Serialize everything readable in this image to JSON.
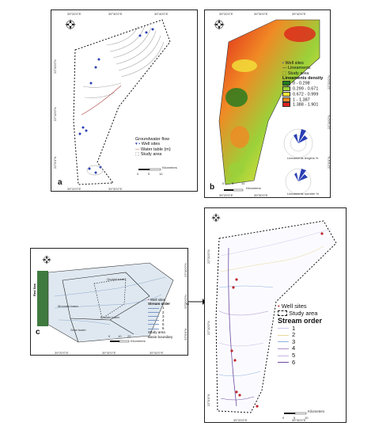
{
  "panel_a": {
    "label": "a",
    "ticks_x": [
      "39°20'0\"E",
      "39°30'0\"E",
      "39°40'0\"E"
    ],
    "ticks_x_bottom": [
      "39°20'0\"E",
      "39°30'0\"E"
    ],
    "ticks_y": [
      "22°20'0\"N",
      "22°10'0\"N",
      "22°0'0\"N"
    ],
    "legend": {
      "title": "Groundwater flow",
      "items": [
        "Well sites",
        "Water table (m)",
        "Study area"
      ]
    },
    "scale": {
      "unit": "Kilometers",
      "ticks": [
        "0",
        "5",
        "10"
      ]
    }
  },
  "panel_b": {
    "label": "b",
    "ticks_x": [
      "39°20'0\"E",
      "39°30'0\"E",
      "39°40'0\"E"
    ],
    "ticks_x_bottom": [
      "39°20'0\"E",
      "39°30'0\"E"
    ],
    "ticks_y_right": [
      "22°20'0\"N",
      "22°10'0\"N",
      "22°0'0\"N"
    ],
    "legend": {
      "items": [
        "Well sites",
        "Lineaments",
        "Study area"
      ],
      "density_title": "Lineaments density",
      "density_classes": [
        {
          "range": "0 - 0.298",
          "color": "#1f7a1f"
        },
        {
          "range": "0.299 - 0.671",
          "color": "#9bd13a"
        },
        {
          "range": "0.672 - 0.999",
          "color": "#f2e43a"
        },
        {
          "range": "1 - 1.387",
          "color": "#f08a24"
        },
        {
          "range": "1.388 - 1.901",
          "color": "#e0231b"
        }
      ]
    },
    "rose1_label": "Lineaments lengths %",
    "rose2_label": "Lineaments number %",
    "scale": {
      "unit": "Kilometers",
      "ticks": [
        "0",
        "5",
        "10"
      ]
    }
  },
  "panel_c": {
    "label": "c",
    "sea_label": "Red Sea",
    "basin_labels": [
      "Qudaid basin",
      "Khulais basin",
      "Murwani basin",
      "Gran basin"
    ],
    "ticks_x": [
      "39°20'0\"E",
      "39°30'0\"E",
      "39°40'0\"E"
    ],
    "ticks_y": [
      "22°40'0\"N",
      "22°20'0\"N",
      "22°0'0\"N"
    ],
    "legend": {
      "items": [
        "Well sites",
        "Stream order"
      ],
      "orders": [
        "1",
        "2",
        "3",
        "4",
        "5",
        "6"
      ],
      "footer": [
        "Study area",
        "Basin boundary"
      ]
    },
    "scale": {
      "unit": "Kilometers",
      "ticks": [
        "0",
        "10",
        "20"
      ]
    }
  },
  "panel_d": {
    "ticks_x": [
      "39°20'0\"E",
      "39°30'0\"E"
    ],
    "ticks_y": [
      "22°20'0\"N",
      "22°10'0\"N",
      "22°0'0\"N"
    ],
    "legend": {
      "well_label": "Well sites",
      "study_label": "Study area",
      "order_title": "Stream order",
      "orders": [
        "1",
        "2",
        "3",
        "4",
        "5",
        "6"
      ],
      "order_colors": [
        "#cfc6ee",
        "#e7d79a",
        "#8fb0dd",
        "#ab8fc9",
        "#c9b4e3",
        "#6e4a9e"
      ]
    },
    "scale": {
      "unit": "Kilometers",
      "ticks": [
        "0",
        "5",
        "10"
      ]
    }
  }
}
